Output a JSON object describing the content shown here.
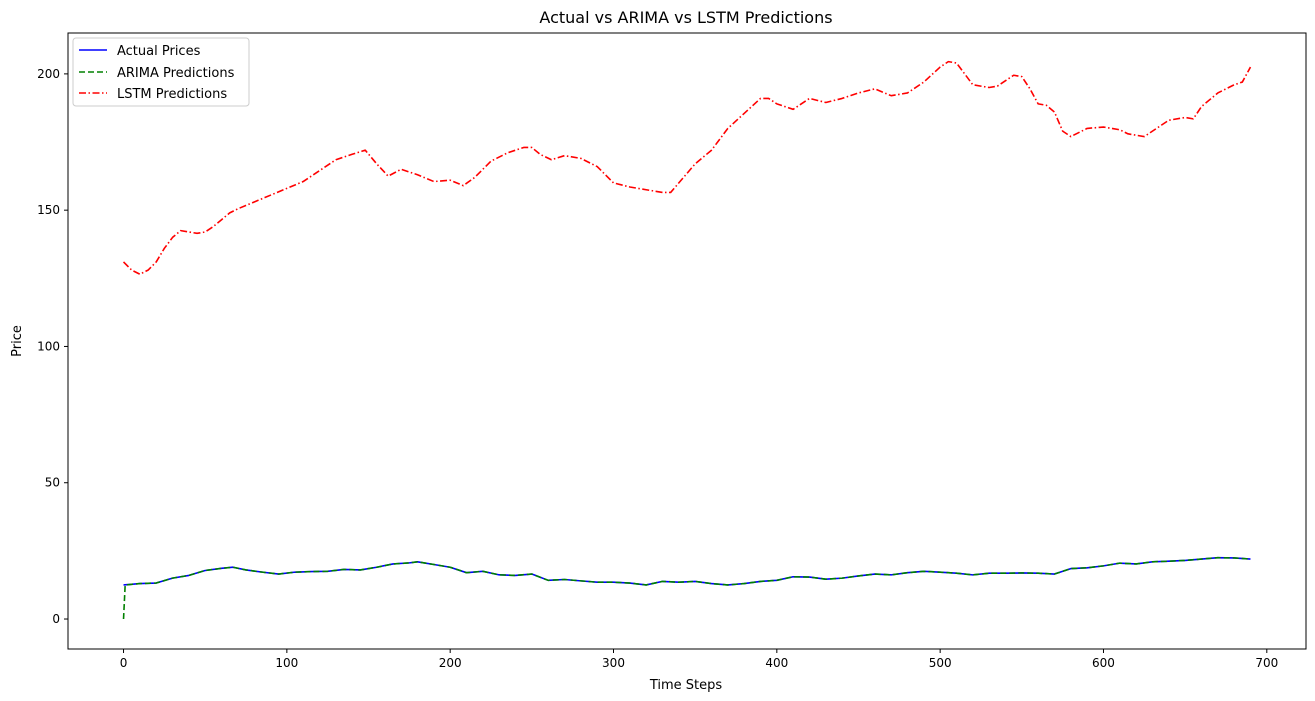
{
  "chart_data": {
    "type": "line",
    "title": "Actual vs ARIMA vs LSTM Predictions",
    "xlabel": "Time Steps",
    "ylabel": "Price",
    "xlim": [
      -34,
      724
    ],
    "ylim": [
      -11,
      215
    ],
    "xticks": [
      0,
      100,
      200,
      300,
      400,
      500,
      600,
      700
    ],
    "yticks": [
      0,
      50,
      100,
      150,
      200
    ],
    "grid": false,
    "legend_position": "top-left",
    "series": [
      {
        "name": "Actual Prices",
        "color": "#0000ff",
        "style": "solid",
        "x": [
          0,
          10,
          20,
          30,
          40,
          50,
          60,
          67,
          75,
          85,
          95,
          105,
          115,
          125,
          135,
          145,
          155,
          165,
          175,
          180,
          190,
          200,
          210,
          220,
          230,
          240,
          250,
          260,
          270,
          280,
          290,
          300,
          310,
          320,
          330,
          340,
          350,
          360,
          370,
          380,
          390,
          400,
          410,
          420,
          430,
          440,
          450,
          460,
          470,
          480,
          490,
          500,
          510,
          520,
          530,
          540,
          550,
          560,
          570,
          580,
          590,
          600,
          610,
          620,
          630,
          640,
          650,
          660,
          670,
          680,
          690
        ],
        "y": [
          12.5,
          13,
          13.2,
          15,
          16,
          17.8,
          18.6,
          19,
          18,
          17.2,
          16.5,
          17.2,
          17.4,
          17.5,
          18.2,
          18,
          19,
          20.2,
          20.6,
          21,
          20,
          19,
          17,
          17.5,
          16.2,
          16,
          16.5,
          14.2,
          14.5,
          14,
          13.5,
          13.5,
          13.2,
          12.5,
          13.8,
          13.5,
          13.8,
          13,
          12.5,
          13,
          13.8,
          14.2,
          15.5,
          15.4,
          14.6,
          15,
          15.8,
          16.5,
          16.2,
          17,
          17.5,
          17.2,
          16.8,
          16.2,
          16.8,
          16.8,
          16.9,
          16.8,
          16.5,
          18.5,
          18.8,
          19.5,
          20.5,
          20.2,
          21,
          21.2,
          21.5,
          22,
          22.5,
          22.4,
          22
        ]
      },
      {
        "name": "ARIMA Predictions",
        "color": "#008000",
        "style": "dashed",
        "x": [
          0,
          1,
          10,
          20,
          30,
          40,
          50,
          60,
          67,
          75,
          85,
          95,
          105,
          115,
          125,
          135,
          145,
          155,
          165,
          175,
          180,
          190,
          200,
          210,
          220,
          230,
          240,
          250,
          260,
          270,
          280,
          290,
          300,
          310,
          320,
          330,
          340,
          350,
          360,
          370,
          380,
          390,
          400,
          410,
          420,
          430,
          440,
          450,
          460,
          470,
          480,
          490,
          500,
          510,
          520,
          530,
          540,
          550,
          560,
          570,
          580,
          590,
          600,
          610,
          620,
          630,
          640,
          650,
          660,
          670,
          680,
          690
        ],
        "y": [
          0,
          12.5,
          13,
          13.2,
          15,
          16,
          17.8,
          18.6,
          19,
          18,
          17.2,
          16.5,
          17.2,
          17.4,
          17.5,
          18.2,
          18,
          19,
          20.2,
          20.6,
          21,
          20,
          19,
          17,
          17.5,
          16.2,
          16,
          16.5,
          14.2,
          14.5,
          14,
          13.5,
          13.5,
          13.2,
          12.5,
          13.8,
          13.5,
          13.8,
          13,
          12.5,
          13,
          13.8,
          14.2,
          15.5,
          15.4,
          14.6,
          15,
          15.8,
          16.5,
          16.2,
          17,
          17.5,
          17.2,
          16.8,
          16.2,
          16.8,
          16.8,
          16.9,
          16.8,
          16.5,
          18.5,
          18.8,
          19.5,
          20.5,
          20.2,
          21,
          21.2,
          21.5,
          22,
          22.5,
          22.4,
          22
        ]
      },
      {
        "name": "LSTM Predictions",
        "color": "#ff0000",
        "style": "dashdot",
        "x": [
          0,
          5,
          10,
          15,
          20,
          25,
          30,
          35,
          40,
          45,
          50,
          55,
          60,
          65,
          70,
          80,
          90,
          100,
          110,
          120,
          130,
          140,
          148,
          155,
          162,
          170,
          180,
          190,
          200,
          208,
          215,
          225,
          235,
          245,
          250,
          255,
          262,
          270,
          280,
          290,
          300,
          310,
          320,
          330,
          335,
          340,
          350,
          360,
          370,
          380,
          390,
          395,
          400,
          410,
          420,
          430,
          440,
          450,
          460,
          470,
          480,
          490,
          500,
          505,
          510,
          515,
          520,
          530,
          535,
          545,
          550,
          555,
          560,
          565,
          570,
          575,
          580,
          590,
          600,
          610,
          615,
          620,
          625,
          630,
          640,
          650,
          655,
          660,
          670,
          680,
          685,
          690
        ],
        "y": [
          131,
          128,
          126.5,
          128,
          131,
          136,
          140,
          142.5,
          142,
          141.5,
          142,
          144,
          146.5,
          149,
          150.5,
          153,
          155.5,
          158,
          160.5,
          164.5,
          168.5,
          170.5,
          172,
          167,
          162.5,
          165,
          163,
          160.5,
          161,
          159,
          162,
          168,
          171,
          173,
          173,
          170.5,
          168.5,
          170,
          169,
          166,
          160,
          158.5,
          157.5,
          156.5,
          156.5,
          160,
          167,
          172,
          180,
          185.5,
          191,
          191,
          189,
          187,
          191,
          189.5,
          191,
          193,
          194.5,
          192,
          193,
          197,
          202.5,
          204.5,
          204,
          200,
          196,
          195,
          195.5,
          199.5,
          199,
          194.5,
          189,
          188.5,
          186,
          179,
          177,
          180,
          180.5,
          179.5,
          178,
          177.5,
          177,
          179,
          183,
          184,
          183.5,
          188,
          193,
          196,
          197,
          202.5
        ]
      }
    ]
  }
}
